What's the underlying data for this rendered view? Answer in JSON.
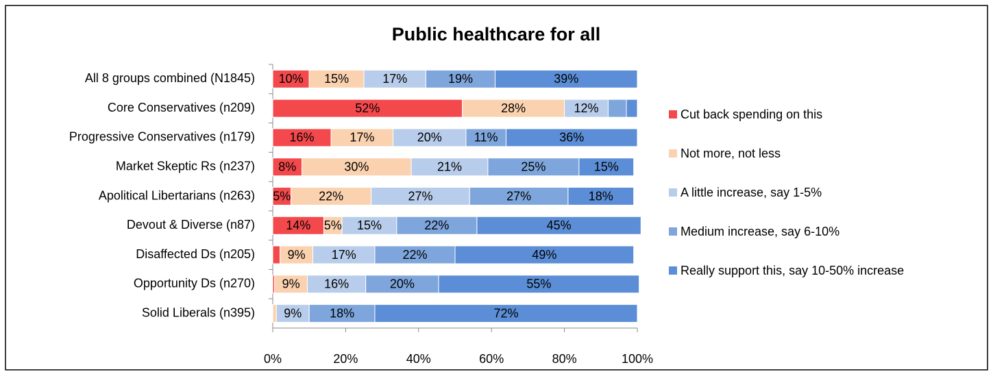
{
  "chart_data": {
    "type": "stacked_bar_horizontal",
    "title": "Public healthcare for all",
    "categories": [
      "All 8 groups combined (N1845)",
      "Core Conservatives (n209)",
      "Progressive Conservatives (n179)",
      "Market Skeptic Rs (n237)",
      "Apolitical Libertarians (n263)",
      "Devout & Diverse (n87)",
      "Disaffected Ds (n205)",
      "Opportunity Ds (n270)",
      "Solid Liberals (n395)"
    ],
    "series": [
      {
        "name": "Cut back spending on this",
        "color": "#f4494c",
        "values": [
          10,
          52,
          16,
          8,
          5,
          14,
          2,
          0.5,
          0
        ],
        "value_labels": [
          "10%",
          "52%",
          "16%",
          "8%",
          "5%",
          "14%",
          null,
          null,
          null
        ]
      },
      {
        "name": "Not more, not less",
        "color": "#fbd2b0",
        "values": [
          15,
          28,
          17,
          30,
          22,
          5,
          9,
          9,
          1
        ],
        "value_labels": [
          "15%",
          "28%",
          "17%",
          "30%",
          "22%",
          "5%",
          "9%",
          "9%",
          null
        ]
      },
      {
        "name": "A little increase, say 1-5%",
        "color": "#b8cdeb",
        "values": [
          17,
          12,
          20,
          21,
          27,
          15,
          17,
          16,
          9
        ],
        "value_labels": [
          "17%",
          "12%",
          "20%",
          "21%",
          "27%",
          "15%",
          "17%",
          "16%",
          "9%"
        ]
      },
      {
        "name": "Medium increase, say 6-10%",
        "color": "#7ea6dc",
        "values": [
          19,
          5,
          11,
          25,
          27,
          22,
          22,
          20,
          18
        ],
        "value_labels": [
          "19%",
          null,
          "11%",
          "25%",
          "27%",
          "22%",
          "22%",
          "20%",
          "18%"
        ]
      },
      {
        "name": "Really support this, say 10-50% increase",
        "color": "#5b8ed6",
        "values": [
          39,
          3,
          36,
          15,
          18,
          45,
          49,
          55,
          72
        ],
        "value_labels": [
          "39%",
          null,
          "36%",
          "15%",
          "18%",
          "45%",
          "49%",
          "55%",
          "72%"
        ]
      }
    ],
    "xlim": [
      0,
      100
    ],
    "xticks": [
      {
        "value": 0,
        "label": "0%"
      },
      {
        "value": 20,
        "label": "20%"
      },
      {
        "value": 40,
        "label": "40%"
      },
      {
        "value": 60,
        "label": "60%"
      },
      {
        "value": 80,
        "label": "80%"
      },
      {
        "value": 100,
        "label": "100%"
      }
    ],
    "legend": "right"
  }
}
